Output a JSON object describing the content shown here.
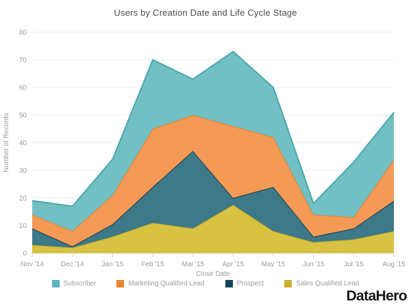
{
  "chart_data": {
    "type": "area",
    "stacked": true,
    "title": "Users by Creation Date and Life Cycle Stage",
    "xlabel": "Close Date",
    "ylabel": "Number of Records",
    "ylim": [
      0,
      80
    ],
    "yticks": [
      0,
      10,
      20,
      30,
      40,
      50,
      60,
      70,
      80
    ],
    "grid": "horizontal",
    "legend_position": "bottom",
    "categories": [
      "Nov '14",
      "Dec '14",
      "Jan '15",
      "Feb '15",
      "Mar '15",
      "Apr '15",
      "May '15",
      "Jun '15",
      "Jul '15",
      "Aug '15"
    ],
    "series": [
      {
        "name": "Sales Qualified Lead",
        "values": [
          3,
          2,
          6,
          11,
          9,
          17.5,
          8,
          4,
          5,
          8
        ],
        "area_color": "#D8C242",
        "line_color": "#C3AC25",
        "legend_color": "#C9B22A"
      },
      {
        "name": "Prospect",
        "values": [
          6,
          0.5,
          4.5,
          13,
          28,
          2.5,
          16,
          2,
          4,
          11
        ],
        "area_color": "#3D7988",
        "line_color": "#123C4B",
        "legend_color": "#13495A"
      },
      {
        "name": "Marketing Qualified Lead",
        "values": [
          5,
          5.5,
          10.5,
          21,
          13,
          26,
          18,
          8,
          4,
          15
        ],
        "area_color": "#F49A56",
        "line_color": "#E87F28",
        "legend_color": "#EF8430"
      },
      {
        "name": "Subscriber",
        "values": [
          5,
          9,
          13,
          25,
          13,
          27,
          18,
          4,
          20,
          17
        ],
        "area_color": "#72C0C4",
        "line_color": "#48A6AD",
        "legend_color": "#57B6BB"
      }
    ],
    "legend_order": [
      "Subscriber",
      "Marketing Qualified Lead",
      "Prospect",
      "Sales Qualified Lead"
    ],
    "stacked_totals": [
      19,
      17,
      34,
      70,
      63,
      73,
      60,
      18,
      33,
      51
    ]
  },
  "colors": {
    "gridline": "#ECECEC",
    "tick_mark": "#D9D9D9",
    "axis_text": "#9B9B9B",
    "title_text": "#4A4A4A"
  },
  "branding": {
    "logo_text": "DataHero"
  }
}
